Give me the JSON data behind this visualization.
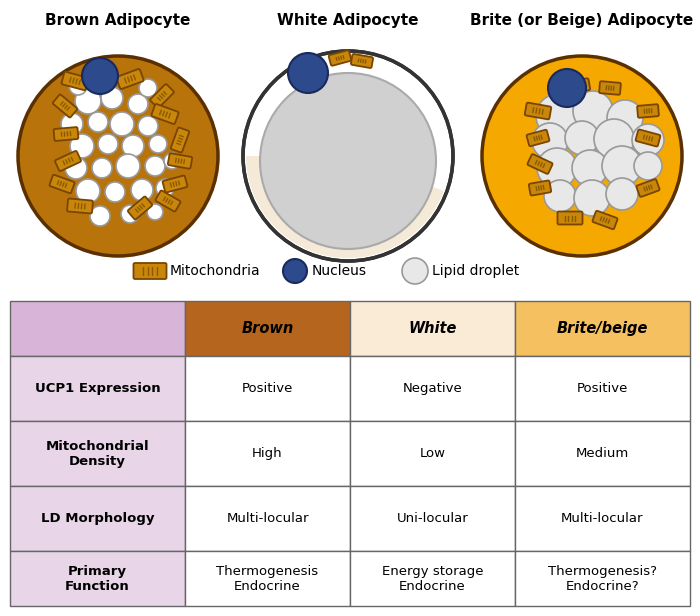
{
  "titles": [
    "Brown Adipocyte",
    "White Adipocyte",
    "Brite (or Beige) Adipocyte"
  ],
  "legend_items": [
    "Mitochondria",
    "Nucleus",
    "Lipid droplet"
  ],
  "table_headers": [
    "",
    "Brown",
    "White",
    "Brite/beige"
  ],
  "table_row_labels": [
    "UCP1 Expression",
    "Mitochondrial\nDensity",
    "LD Morphology",
    "Primary\nFunction"
  ],
  "table_data": [
    [
      "Positive",
      "Negative",
      "Positive"
    ],
    [
      "High",
      "Low",
      "Medium"
    ],
    [
      "Multi-locular",
      "Uni-locular",
      "Multi-locular"
    ],
    [
      "Thermogenesis\nEndocrine",
      "Energy storage\nEndocrine",
      "Thermogenesis?\nEndocrine?"
    ]
  ],
  "header_bg_colors": [
    "#d8b4d8",
    "#b5651d",
    "#faebd7",
    "#f5c060"
  ],
  "row_label_bg": "#e8d5e8",
  "mito_outer": "#c8860a",
  "mito_inner": "#d4960f",
  "mito_stripe": "#8b5a00",
  "mito_edge": "#7a4500",
  "nucleus_color": "#2c4a8c",
  "nucleus_edge": "#1a2a5c",
  "lipid_fill_brown": "#ffffff",
  "lipid_fill_brite": "#e8e8e8",
  "lipid_edge": "#999999",
  "brown_bg": "#b8730a",
  "brite_bg": "#f5a800",
  "white_cell_edge": "#333333",
  "white_cytoplasm": "#f5ead8",
  "white_lipid_fill": "#c8c8c8"
}
